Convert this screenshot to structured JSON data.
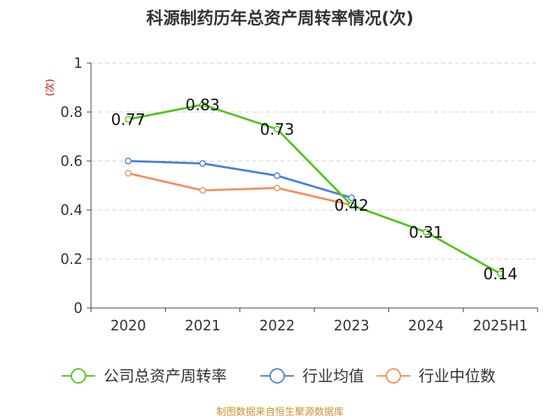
{
  "chart_data": {
    "type": "line",
    "title": "科源制药历年总资产周转率情况(次)",
    "ylabel": "(次)",
    "xlabel": "",
    "categories": [
      "2020",
      "2021",
      "2022",
      "2023",
      "2024",
      "2025H1"
    ],
    "ylim": [
      0,
      1
    ],
    "yticks": [
      0,
      0.2,
      0.4,
      0.6,
      0.8,
      1
    ],
    "ytick_labels": [
      "0",
      "0.2",
      "0.4",
      "0.6",
      "0.8",
      "1"
    ],
    "grid": true,
    "legend_position": "bottom",
    "series": [
      {
        "name": "公司总资产周转率",
        "color": "#52c41a",
        "values": [
          0.77,
          0.83,
          0.73,
          0.42,
          0.31,
          0.14
        ],
        "labels": [
          "0.77",
          "0.83",
          "0.73",
          "0.42",
          "0.31",
          "0.14"
        ]
      },
      {
        "name": "行业均值",
        "color": "#4a7fdb",
        "values": [
          0.6,
          0.59,
          0.54,
          0.45,
          null,
          null
        ]
      },
      {
        "name": "行业中位数",
        "color": "#f5905a",
        "values": [
          0.55,
          0.48,
          0.49,
          0.42,
          null,
          null
        ]
      }
    ]
  },
  "footer": {
    "source": "制图数据来自恒生聚源数据库"
  },
  "colors": {
    "axis": "#333333",
    "grid": "#cccccc",
    "ylabel": "#cc0000",
    "source": "#c8932a"
  }
}
